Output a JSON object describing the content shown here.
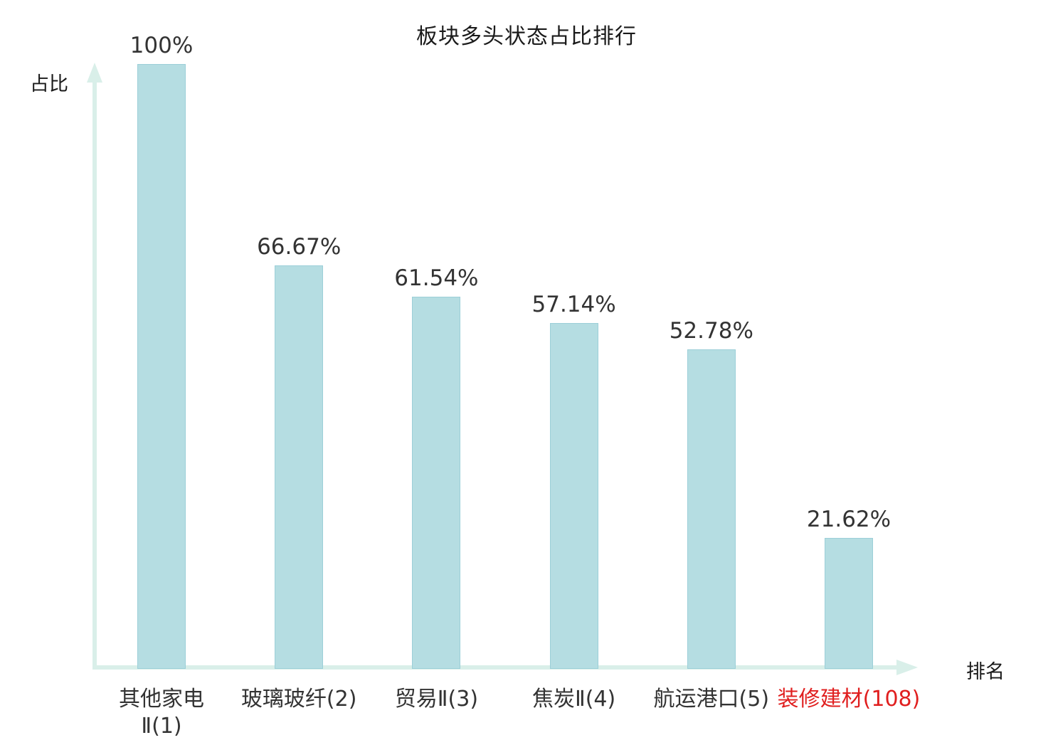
{
  "chart_data": {
    "type": "bar",
    "title": "板块多头状态占比排行",
    "ylabel": "占比",
    "xlabel": "排名",
    "categories": [
      "其他家电\nⅡ(1)",
      "玻璃玻纤(2)",
      "贸易Ⅱ(3)",
      "焦炭Ⅱ(4)",
      "航运港口(5)",
      "装修建材(108)"
    ],
    "values": [
      100,
      66.67,
      61.54,
      57.14,
      52.78,
      21.62
    ],
    "value_labels": [
      "100%",
      "66.67%",
      "61.54%",
      "57.14%",
      "52.78%",
      "21.62%"
    ],
    "ylim": [
      0,
      100
    ],
    "grid": false,
    "legend": "none",
    "bar_color": "#b5dde2",
    "bar_border_color": "#9ccfd8",
    "axis_color": "#d9efe9",
    "label_color": "#333333",
    "highlight_index": 5,
    "highlight_color": "#e01f1f"
  }
}
